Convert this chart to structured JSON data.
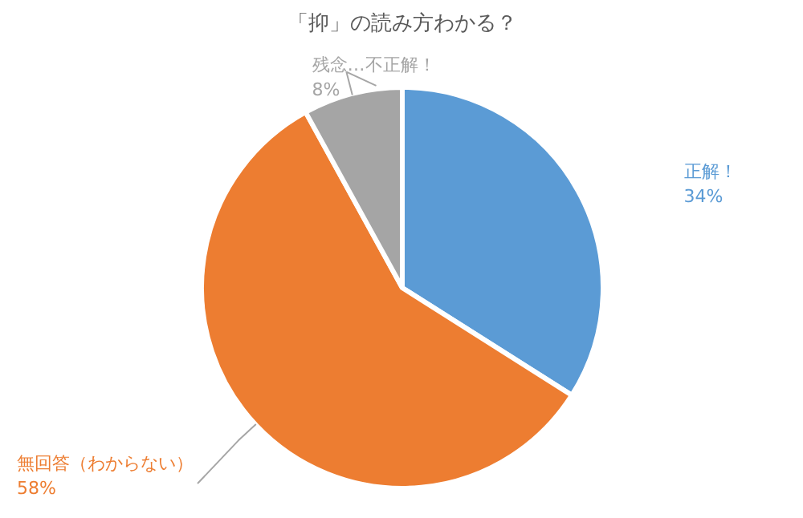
{
  "chart_data": {
    "type": "pie",
    "title": "「抑」の読み方わかる？",
    "categories": [
      "正解！",
      "無回答（わからない）",
      "残念…不正解！"
    ],
    "values": [
      34,
      58,
      8
    ],
    "value_labels": [
      "34%",
      "58%",
      "8%"
    ],
    "colors": [
      "#5b9bd5",
      "#ed7d31",
      "#a5a5a5"
    ]
  }
}
